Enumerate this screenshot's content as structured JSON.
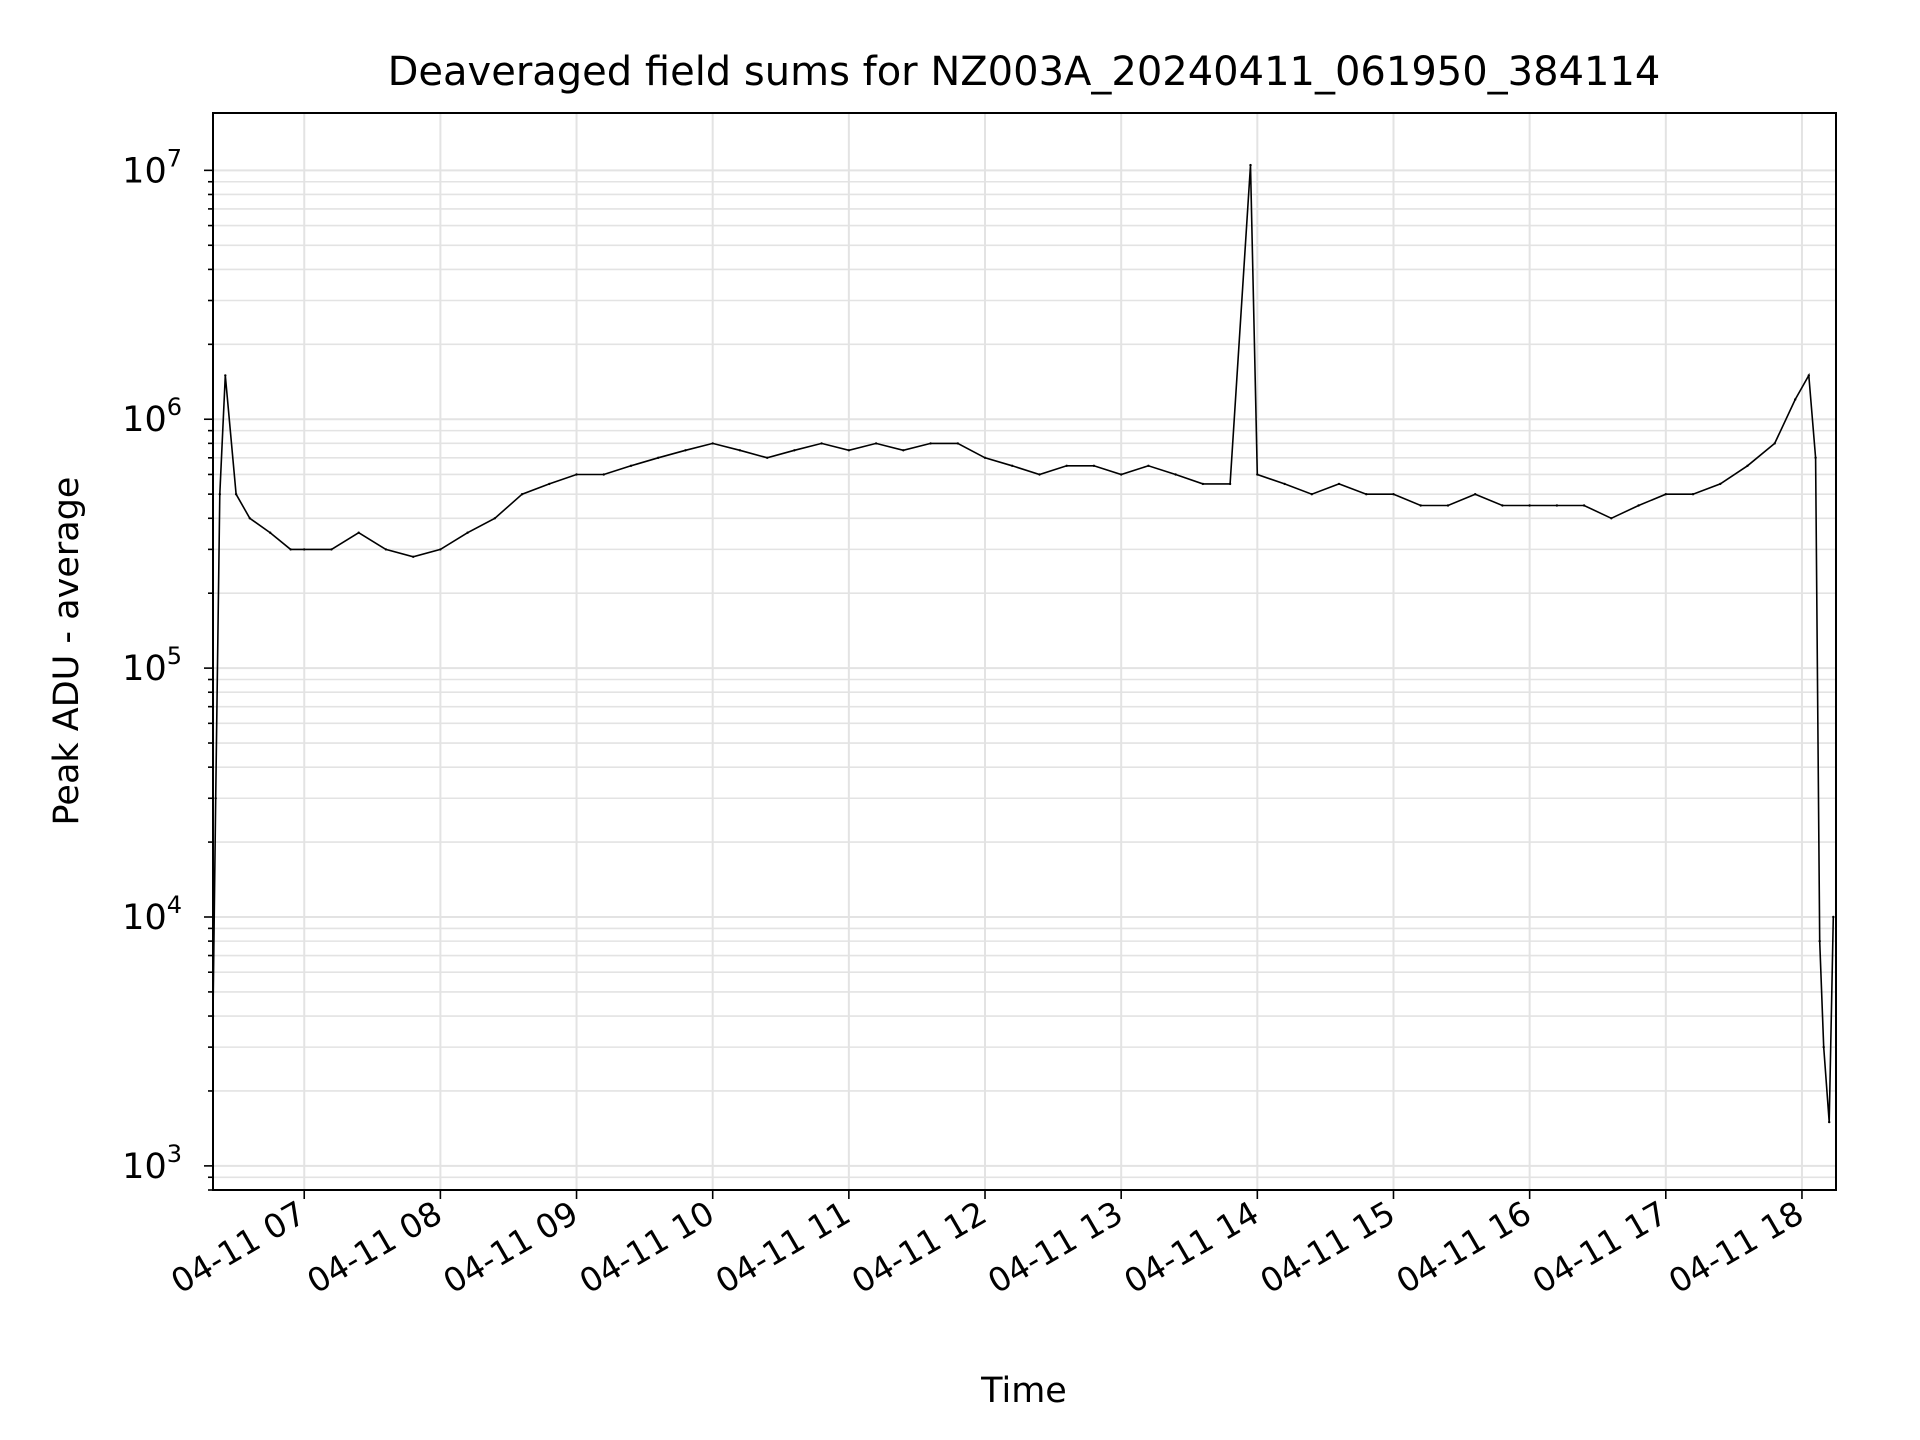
{
  "chart_data": {
    "type": "line",
    "title": "Deaveraged field sums for NZ003A_20240411_061950_384114",
    "xlabel": "Time",
    "ylabel": "Peak ADU - average",
    "x_tick_labels": [
      "04-11 07",
      "04-11 08",
      "04-11 09",
      "04-11 10",
      "04-11 11",
      "04-11 12",
      "04-11 13",
      "04-11 14",
      "04-11 15",
      "04-11 16",
      "04-11 17",
      "04-11 18"
    ],
    "x_ticks_hours": [
      7,
      8,
      9,
      10,
      11,
      12,
      13,
      14,
      15,
      16,
      17,
      18
    ],
    "xlim_hours": [
      6.33,
      18.25
    ],
    "y_scale": "log",
    "ylim": [
      800,
      17000000
    ],
    "y_tick_exponents": [
      "3",
      "4",
      "5",
      "6",
      "7"
    ],
    "y_tick_values": [
      1000,
      10000,
      100000,
      1000000,
      10000000
    ],
    "grid": true,
    "line_color": "#000000",
    "series": [
      {
        "x_hours": [
          6.33,
          6.35,
          6.38,
          6.42,
          6.5,
          6.6,
          6.75,
          6.9,
          7.0,
          7.2,
          7.4,
          7.6,
          7.8,
          8.0,
          8.2,
          8.4,
          8.6,
          8.8,
          9.0,
          9.2,
          9.4,
          9.6,
          9.8,
          10.0,
          10.2,
          10.4,
          10.6,
          10.8,
          11.0,
          11.2,
          11.4,
          11.6,
          11.8,
          12.0,
          12.2,
          12.4,
          12.6,
          12.8,
          13.0,
          13.2,
          13.4,
          13.6,
          13.8,
          13.95,
          14.0,
          14.2,
          14.4,
          14.6,
          14.8,
          15.0,
          15.2,
          15.4,
          15.6,
          15.8,
          16.0,
          16.2,
          16.4,
          16.6,
          16.8,
          17.0,
          17.2,
          17.4,
          17.6,
          17.8,
          17.95,
          18.05,
          18.1,
          18.13,
          18.16,
          18.2,
          18.23
        ],
        "y": [
          4000,
          30000,
          500000,
          1500000,
          500000,
          400000,
          350000,
          300000,
          300000,
          300000,
          350000,
          300000,
          280000,
          300000,
          350000,
          400000,
          500000,
          550000,
          600000,
          600000,
          650000,
          700000,
          750000,
          800000,
          750000,
          700000,
          750000,
          800000,
          750000,
          800000,
          750000,
          800000,
          800000,
          700000,
          650000,
          600000,
          650000,
          650000,
          600000,
          650000,
          600000,
          550000,
          550000,
          10500000,
          600000,
          550000,
          500000,
          550000,
          500000,
          500000,
          450000,
          450000,
          500000,
          450000,
          450000,
          450000,
          450000,
          400000,
          450000,
          500000,
          500000,
          550000,
          650000,
          800000,
          1200000,
          1500000,
          700000,
          8000,
          3000,
          1500,
          10000
        ]
      }
    ]
  }
}
